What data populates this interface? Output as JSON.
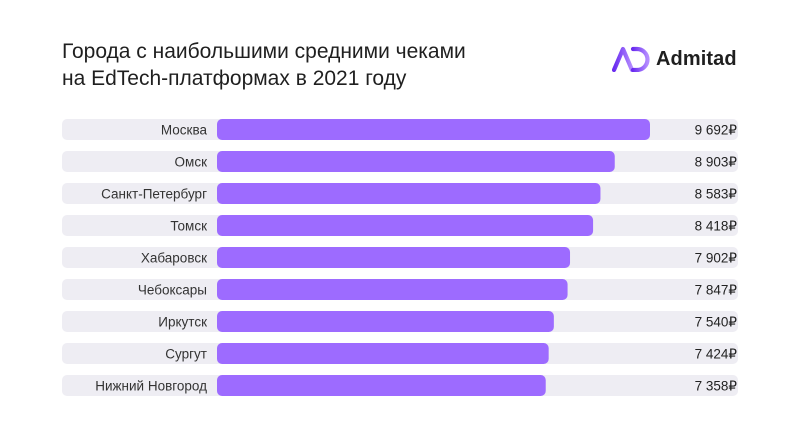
{
  "header": {
    "title": "Города с наибольшими средними чеками\nна EdTech-платформах в 2021 году",
    "brand_name": "Admitad",
    "brand_icon": "admitad-logo-icon"
  },
  "colors": {
    "bar": "#9d6bff",
    "track": "#eeedf3",
    "brand_gradient_start": "#6a2cf0",
    "brand_gradient_end": "#b48cff",
    "text": "#1f1f1f"
  },
  "chart_data": {
    "type": "bar",
    "orientation": "horizontal",
    "title": "Города с наибольшими средними чеками на EdTech-платформах в 2021 году",
    "categories": [
      "Москва",
      "Омск",
      "Санкт-Петербург",
      "Томск",
      "Хабаровск",
      "Чебоксары",
      "Иркутск",
      "Сургут",
      "Нижний Новгород"
    ],
    "values": [
      9692,
      8903,
      8583,
      8418,
      7902,
      7847,
      7540,
      7424,
      7358
    ],
    "value_labels": [
      "9 692₽",
      "8 903₽",
      "8 583₽",
      "8 418₽",
      "7 902₽",
      "7 847₽",
      "7 540₽",
      "7 424₽",
      "7 358₽"
    ],
    "unit": "₽",
    "xlim": [
      0,
      10000
    ],
    "grid": false,
    "legend": "none"
  }
}
